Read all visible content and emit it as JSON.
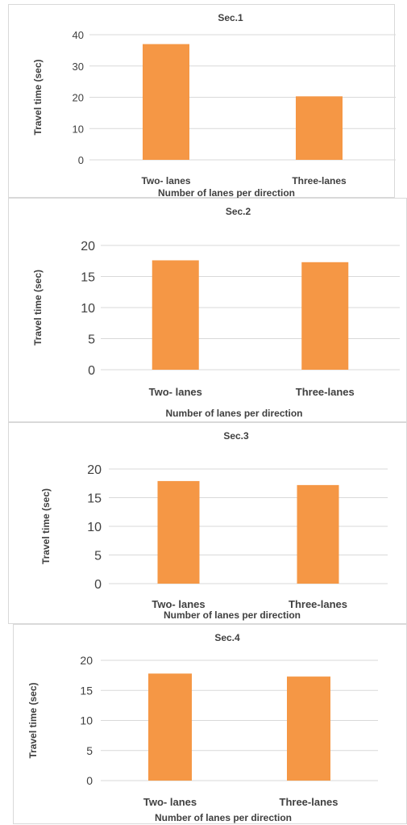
{
  "chart_data": [
    {
      "type": "bar",
      "title": "Sec.1",
      "categories": [
        "Two- lanes",
        "Three-lanes"
      ],
      "values": [
        37,
        20.3
      ],
      "xlabel": "Number of lanes per direction",
      "ylabel": "Travel time (sec)",
      "ylim": [
        0,
        40
      ],
      "yticks": [
        0,
        10,
        20,
        30,
        40
      ],
      "grid": true,
      "color": "#f59745"
    },
    {
      "type": "bar",
      "title": "Sec.2",
      "categories": [
        "Two- lanes",
        "Three-lanes"
      ],
      "values": [
        17.6,
        17.3
      ],
      "xlabel": "Number of lanes per direction",
      "ylabel": "Travel time (sec)",
      "ylim": [
        0,
        20
      ],
      "yticks": [
        0,
        5,
        10,
        15,
        20
      ],
      "grid": true,
      "color": "#f59745"
    },
    {
      "type": "bar",
      "title": "Sec.3",
      "categories": [
        "Two- lanes",
        "Three-lanes"
      ],
      "values": [
        17.9,
        17.2
      ],
      "xlabel": "Number of lanes per direction",
      "ylabel": "Travel time (sec)",
      "ylim": [
        0,
        20
      ],
      "yticks": [
        0,
        5,
        10,
        15,
        20
      ],
      "grid": true,
      "color": "#f59745"
    },
    {
      "type": "bar",
      "title": "Sec.4",
      "categories": [
        "Two- lanes",
        "Three-lanes"
      ],
      "values": [
        17.8,
        17.3
      ],
      "xlabel": "Number of lanes per direction",
      "ylabel": "Travel time (sec)",
      "ylim": [
        0,
        20
      ],
      "yticks": [
        0,
        5,
        10,
        15,
        20
      ],
      "grid": true,
      "color": "#f59745"
    }
  ]
}
